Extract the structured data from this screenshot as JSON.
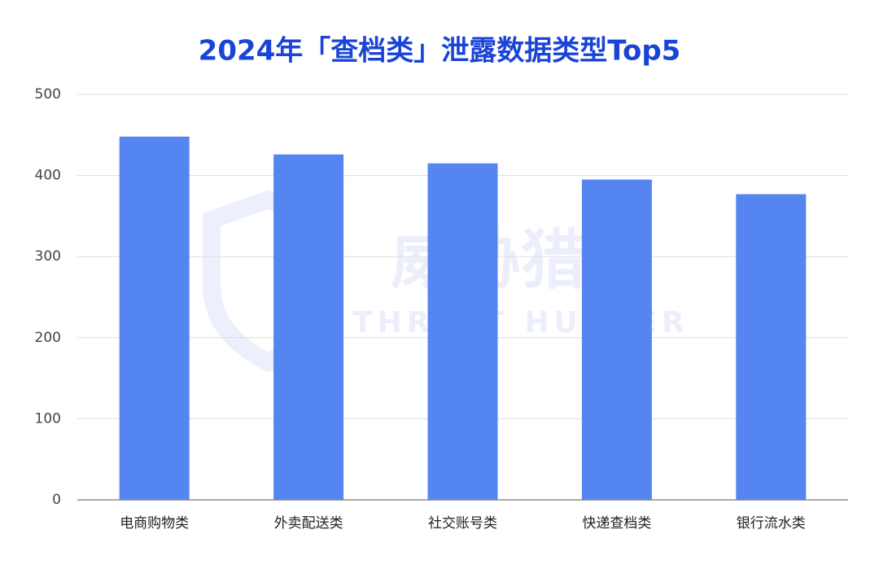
{
  "chart_data": {
    "type": "bar",
    "title": "2024年「查档类」泄露数据类型Top5",
    "categories": [
      "电商购物类",
      "外卖配送类",
      "社交账号类",
      "快递查档类",
      "银行流水类"
    ],
    "values": [
      448,
      426,
      415,
      395,
      377
    ],
    "color": "#5585f0",
    "ylim": [
      0,
      500
    ],
    "yticks": [
      0,
      100,
      200,
      300,
      400,
      500
    ],
    "grid": true,
    "watermark": "威胁猎人",
    "watermark_subtext": "THREAT HUNTER"
  }
}
